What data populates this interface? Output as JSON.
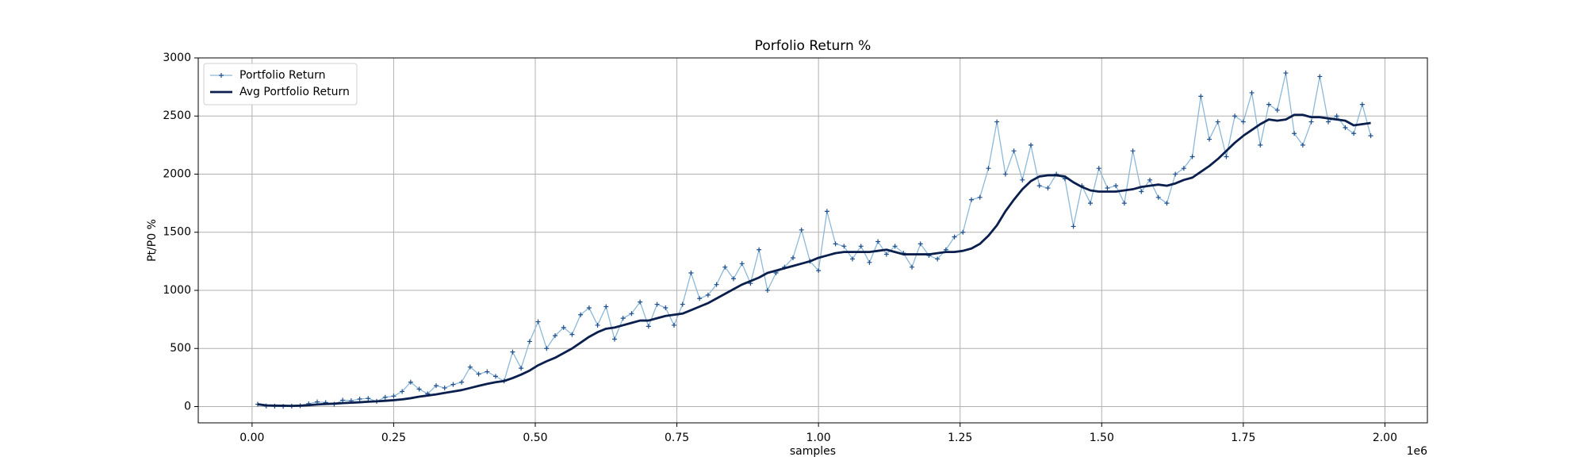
{
  "chart_data": {
    "type": "line",
    "title": "Porfolio Return %",
    "x_label": "samples",
    "y_label": "Pt/P0 %",
    "x_offset_label": "1e6",
    "xlim": [
      -95000,
      2075000
    ],
    "ylim": [
      -140,
      3000
    ],
    "grid": true,
    "legend": "upper left",
    "xticks": [
      {
        "value": 0,
        "label": "0.00"
      },
      {
        "value": 250000,
        "label": "0.25"
      },
      {
        "value": 500000,
        "label": "0.50"
      },
      {
        "value": 750000,
        "label": "0.75"
      },
      {
        "value": 1000000,
        "label": "1.00"
      },
      {
        "value": 1250000,
        "label": "1.25"
      },
      {
        "value": 1500000,
        "label": "1.50"
      },
      {
        "value": 1750000,
        "label": "1.75"
      },
      {
        "value": 2000000,
        "label": "2.00"
      }
    ],
    "yticks": [
      0,
      500,
      1000,
      1500,
      2000,
      2500,
      3000
    ],
    "x": [
      10000,
      25000,
      40000,
      55000,
      70000,
      85000,
      100000,
      115000,
      130000,
      145000,
      160000,
      175000,
      190000,
      205000,
      220000,
      235000,
      250000,
      265000,
      280000,
      295000,
      310000,
      325000,
      340000,
      355000,
      370000,
      385000,
      400000,
      415000,
      430000,
      445000,
      460000,
      475000,
      490000,
      505000,
      520000,
      535000,
      550000,
      565000,
      580000,
      595000,
      610000,
      625000,
      640000,
      655000,
      670000,
      685000,
      700000,
      715000,
      730000,
      745000,
      760000,
      775000,
      790000,
      805000,
      820000,
      835000,
      850000,
      865000,
      880000,
      895000,
      910000,
      925000,
      940000,
      955000,
      970000,
      985000,
      1000000,
      1015000,
      1030000,
      1045000,
      1060000,
      1075000,
      1090000,
      1105000,
      1120000,
      1135000,
      1150000,
      1165000,
      1180000,
      1195000,
      1210000,
      1225000,
      1240000,
      1255000,
      1270000,
      1285000,
      1300000,
      1315000,
      1330000,
      1345000,
      1360000,
      1375000,
      1390000,
      1405000,
      1420000,
      1435000,
      1450000,
      1465000,
      1480000,
      1495000,
      1510000,
      1525000,
      1540000,
      1555000,
      1570000,
      1585000,
      1600000,
      1615000,
      1630000,
      1645000,
      1660000,
      1675000,
      1690000,
      1705000,
      1720000,
      1735000,
      1750000,
      1765000,
      1780000,
      1795000,
      1810000,
      1825000,
      1840000,
      1855000,
      1870000,
      1885000,
      1900000,
      1915000,
      1930000,
      1945000,
      1960000,
      1975000
    ],
    "series": [
      {
        "name": "Portfolio Return",
        "color": "#8db8d8",
        "marker": "+",
        "marker_color": "#1f4e8c",
        "values": [
          20,
          5,
          3,
          2,
          4,
          8,
          25,
          40,
          35,
          20,
          55,
          50,
          65,
          70,
          45,
          80,
          90,
          130,
          210,
          150,
          110,
          180,
          160,
          190,
          210,
          340,
          280,
          300,
          260,
          220,
          470,
          330,
          560,
          730,
          500,
          610,
          680,
          620,
          790,
          850,
          700,
          860,
          580,
          760,
          800,
          900,
          690,
          880,
          850,
          700,
          880,
          1150,
          930,
          960,
          1050,
          1200,
          1100,
          1230,
          1060,
          1350,
          1000,
          1150,
          1200,
          1280,
          1520,
          1250,
          1170,
          1680,
          1400,
          1380,
          1270,
          1380,
          1240,
          1420,
          1310,
          1380,
          1320,
          1200,
          1400,
          1300,
          1270,
          1350,
          1460,
          1500,
          1780,
          1800,
          2050,
          2450,
          2000,
          2200,
          1950,
          2250,
          1900,
          1880,
          2000,
          1960,
          1550,
          1900,
          1750,
          2050,
          1880,
          1900,
          1750,
          2200,
          1850,
          1950,
          1800,
          1750,
          2000,
          2050,
          2150,
          2670,
          2300,
          2450,
          2150,
          2500,
          2450,
          2700,
          2250,
          2600,
          2550,
          2870,
          2350,
          2250,
          2450,
          2840,
          2450,
          2500,
          2400,
          2350,
          2600,
          2330
        ]
      },
      {
        "name": "Avg Portfolio Return",
        "color": "#0a1f4d",
        "values": [
          20,
          10,
          8,
          7,
          6,
          8,
          12,
          18,
          22,
          25,
          30,
          33,
          37,
          42,
          45,
          50,
          55,
          62,
          72,
          85,
          95,
          105,
          118,
          130,
          142,
          160,
          178,
          195,
          210,
          220,
          245,
          275,
          310,
          355,
          390,
          420,
          460,
          500,
          550,
          600,
          640,
          670,
          680,
          700,
          720,
          740,
          740,
          760,
          780,
          790,
          800,
          830,
          860,
          890,
          930,
          970,
          1010,
          1050,
          1080,
          1110,
          1150,
          1170,
          1190,
          1210,
          1230,
          1250,
          1280,
          1300,
          1320,
          1330,
          1330,
          1330,
          1330,
          1340,
          1350,
          1330,
          1310,
          1310,
          1310,
          1310,
          1320,
          1330,
          1330,
          1340,
          1360,
          1400,
          1470,
          1560,
          1680,
          1780,
          1870,
          1940,
          1980,
          1990,
          1990,
          1980,
          1930,
          1890,
          1860,
          1850,
          1850,
          1850,
          1860,
          1870,
          1890,
          1900,
          1910,
          1900,
          1920,
          1950,
          1970,
          2020,
          2070,
          2130,
          2200,
          2270,
          2330,
          2380,
          2430,
          2470,
          2460,
          2470,
          2510,
          2510,
          2490,
          2490,
          2480,
          2470,
          2460,
          2420,
          2430,
          2440
        ]
      }
    ]
  }
}
